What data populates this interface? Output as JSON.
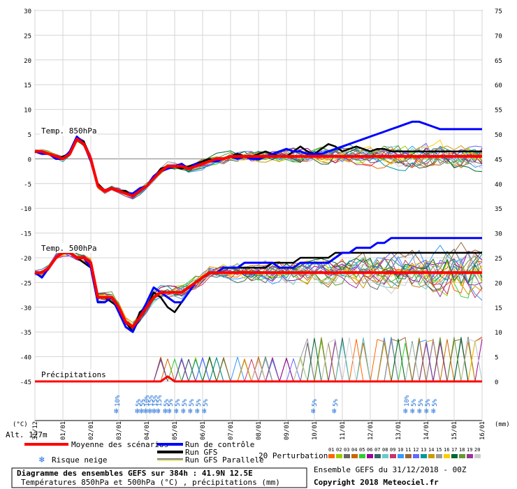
{
  "chart_data": {
    "type": "line",
    "title": "Diagramme des ensembles GEFS sur 384h : 41.9N 12.5E",
    "subtitle": "Températures 850hPa et 500hPa (°C) , précipitations (mm)",
    "run_info": "Ensemble GEFS du 31/12/2018 - 00Z",
    "copyright": "Copyright 2018 Meteociel.fr",
    "altitude": "Alt. 127m",
    "left_axis_unit": "(°C)",
    "right_axis_unit": "(mm)",
    "left_ticks": [
      "30",
      "25",
      "20",
      "15",
      "10",
      "5",
      "0",
      "-5",
      "-10",
      "-15",
      "-20",
      "-25",
      "-30",
      "-35",
      "-40",
      "-45"
    ],
    "right_ticks": [
      "75",
      "70",
      "65",
      "60",
      "55",
      "50",
      "45",
      "40",
      "35",
      "30",
      "25",
      "20",
      "15",
      "10",
      "5",
      "0"
    ],
    "ylim": [
      -45,
      30
    ],
    "x_dates": [
      "31/12",
      "01/01",
      "02/01",
      "03/01",
      "04/01",
      "05/01",
      "06/01",
      "07/01",
      "08/01",
      "09/01",
      "10/01",
      "11/01",
      "12/01",
      "13/01",
      "14/01",
      "15/01",
      "16/01"
    ],
    "x_tick_labels": [
      "31/12",
      "01/01",
      "02/01",
      "03/01",
      "04/01",
      "05/01",
      "06/01",
      "07/01",
      "08/01",
      "09/01",
      "10/01",
      "11/01",
      "12/01",
      "13/01",
      "14/01",
      "15/01",
      "16/01"
    ],
    "section_labels": {
      "t850": "Temp. 850hPa",
      "t500": "Temp. 500hPa",
      "precip": "Précipitations"
    },
    "t850_mean": [
      1.5,
      1.5,
      1.0,
      0.5,
      0.0,
      1.0,
      4.0,
      3.0,
      0.0,
      -5.5,
      -6.5,
      -6.0,
      -6.5,
      -7.0,
      -7.5,
      -6.5,
      -5.5,
      -4.0,
      -2.5,
      -1.5,
      -1.5,
      -1.5,
      -2.0,
      -1.5,
      -1.0,
      -0.5,
      0.0,
      0.0,
      0.5,
      0.5,
      0.5,
      0.5,
      0.5,
      0.5,
      0.5,
      0.5,
      0.5,
      0.5,
      0.5,
      0.5,
      0.5,
      0.5,
      0.5,
      0.5,
      0.5,
      0.5,
      0.5,
      0.5,
      0.5,
      0.5,
      0.5,
      0.5,
      0.5,
      0.5,
      0.5,
      0.5,
      0.5,
      0.5,
      0.5,
      0.5,
      0.5,
      0.5,
      0.5,
      0.5,
      0.5
    ],
    "t850_control": [
      1.5,
      1.0,
      1.0,
      0.0,
      0.0,
      1.5,
      4.5,
      3.0,
      -0.5,
      -5.5,
      -6.5,
      -6.0,
      -6.5,
      -7.0,
      -7.0,
      -6.0,
      -5.5,
      -3.5,
      -2.5,
      -2.0,
      -1.5,
      -1.0,
      -2.0,
      -1.0,
      -1.0,
      -0.5,
      -0.5,
      0.0,
      0.5,
      0.0,
      0.5,
      0.0,
      0.0,
      0.5,
      1.0,
      1.5,
      2.0,
      1.5,
      1.5,
      1.0,
      1.0,
      1.0,
      1.5,
      2.0,
      2.5,
      3.0,
      3.5,
      4.0,
      4.5,
      5.0,
      5.5,
      6.0,
      6.5,
      7.0,
      7.5,
      7.5,
      7.0,
      6.5,
      6.0,
      6.0,
      6.0,
      6.0,
      6.0,
      6.0,
      6.0
    ],
    "t850_gfs": [
      1.5,
      1.0,
      1.0,
      0.0,
      0.5,
      1.0,
      4.0,
      3.5,
      0.0,
      -5.0,
      -6.5,
      -6.0,
      -6.5,
      -6.5,
      -7.5,
      -6.0,
      -5.5,
      -4.0,
      -2.0,
      -1.5,
      -1.5,
      -2.0,
      -1.5,
      -1.0,
      -0.5,
      0.0,
      -0.5,
      0.0,
      0.5,
      1.0,
      0.5,
      0.5,
      1.0,
      1.5,
      1.0,
      0.5,
      0.5,
      1.5,
      2.5,
      1.5,
      1.0,
      2.0,
      3.0,
      2.5,
      1.5,
      2.0,
      2.5,
      2.0,
      1.5,
      2.0,
      2.0,
      1.5,
      1.5,
      1.5,
      1.5,
      1.5,
      1.5,
      1.5,
      1.5,
      1.5,
      1.5,
      1.5,
      1.5,
      1.5,
      1.5
    ],
    "t500_mean": [
      -23,
      -23,
      -22,
      -20,
      -19,
      -19,
      -20,
      -20,
      -21,
      -28,
      -28,
      -28,
      -30,
      -33,
      -34,
      -32,
      -30,
      -28,
      -27,
      -27,
      -27,
      -27,
      -26,
      -25,
      -24,
      -23,
      -23,
      -23,
      -23,
      -23,
      -23,
      -23,
      -23,
      -23,
      -23,
      -23,
      -23,
      -23,
      -23,
      -23,
      -23,
      -23,
      -23,
      -23,
      -23,
      -23,
      -23,
      -23,
      -23,
      -23,
      -23,
      -23,
      -23,
      -23,
      -23,
      -23,
      -23,
      -23,
      -23,
      -23,
      -23,
      -23,
      -23,
      -23,
      -23
    ],
    "t500_control": [
      -23,
      -24,
      -22,
      -20,
      -19,
      -19,
      -20,
      -20,
      -22,
      -29,
      -29,
      -28,
      -31,
      -34,
      -35,
      -32,
      -29,
      -26,
      -27,
      -28,
      -29,
      -29,
      -27,
      -25,
      -24,
      -23,
      -23,
      -22,
      -22,
      -22,
      -21,
      -21,
      -21,
      -21,
      -21,
      -22,
      -22,
      -22,
      -21,
      -21,
      -21,
      -21,
      -21,
      -20,
      -19,
      -19,
      -18,
      -18,
      -18,
      -17,
      -17,
      -16,
      -16,
      -16,
      -16,
      -16,
      -16,
      -16,
      -16,
      -16,
      -16,
      -16,
      -16,
      -16,
      -16
    ],
    "t500_gfs": [
      -23,
      -23,
      -22,
      -20,
      -19,
      -19,
      -20,
      -21,
      -22,
      -28,
      -28,
      -29,
      -30,
      -33,
      -35,
      -31,
      -30,
      -27,
      -28,
      -30,
      -31,
      -29,
      -27,
      -25,
      -24,
      -23,
      -23,
      -22,
      -22,
      -22,
      -22,
      -22,
      -22,
      -22,
      -21,
      -21,
      -21,
      -21,
      -20,
      -20,
      -20,
      -20,
      -20,
      -19,
      -19,
      -19,
      -19,
      -19,
      -19,
      -19,
      -19,
      -19,
      -19,
      -19,
      -19,
      -19,
      -19,
      -19,
      -19,
      -19,
      -19,
      -19,
      -19,
      -19,
      -19
    ],
    "precip_mean_mm": [
      0,
      0,
      0,
      0,
      0,
      0,
      0,
      0,
      0,
      0,
      0,
      0,
      0,
      0,
      0,
      0,
      0,
      0,
      0,
      1,
      0,
      0,
      0,
      0,
      0,
      0,
      0,
      0,
      0,
      0,
      0,
      0,
      0,
      0,
      0,
      0,
      0,
      0,
      0,
      0,
      0,
      0,
      0,
      0,
      0,
      0,
      0,
      0,
      0,
      0,
      0,
      0,
      0,
      0,
      0,
      0,
      0,
      0,
      0,
      0,
      0,
      0,
      0,
      0,
      0
    ],
    "snow_risk_labels": [
      {
        "date_index": 2.95,
        "pct": "10%"
      },
      {
        "date_index": 3.7,
        "pct": "5%"
      },
      {
        "date_index": 3.85,
        "pct": "5%"
      },
      {
        "date_index": 4.0,
        "pct": "10%"
      },
      {
        "date_index": 4.15,
        "pct": "15%"
      },
      {
        "date_index": 4.3,
        "pct": "15%"
      },
      {
        "date_index": 4.45,
        "pct": "15%"
      },
      {
        "date_index": 4.7,
        "pct": "5%"
      },
      {
        "date_index": 4.85,
        "pct": "5%"
      },
      {
        "date_index": 5.1,
        "pct": "5%"
      },
      {
        "date_index": 5.35,
        "pct": "5%"
      },
      {
        "date_index": 5.6,
        "pct": "5%"
      },
      {
        "date_index": 5.85,
        "pct": "5%"
      },
      {
        "date_index": 6.1,
        "pct": "5%"
      },
      {
        "date_index": 10.0,
        "pct": "5%"
      },
      {
        "date_index": 10.75,
        "pct": "5%"
      },
      {
        "date_index": 13.3,
        "pct": "10%"
      },
      {
        "date_index": 13.55,
        "pct": "5%"
      },
      {
        "date_index": 13.8,
        "pct": "5%"
      },
      {
        "date_index": 14.05,
        "pct": "5%"
      },
      {
        "date_index": 14.3,
        "pct": "5%"
      }
    ],
    "grid": true
  },
  "legend": {
    "mean": "Moyenne des scénarios",
    "control": "Run de contrôle",
    "gfs": "Run GFS",
    "gfs_parallel": "Run GFS Parallele",
    "snow": "Risque neige",
    "perturbations": "20 Perturbations",
    "perturbation_ids": [
      "01",
      "02",
      "03",
      "04",
      "05",
      "06",
      "07",
      "08",
      "09",
      "10",
      "11",
      "12",
      "13",
      "14",
      "15",
      "16",
      "17",
      "18",
      "19",
      "20"
    ]
  },
  "colors": {
    "mean": "#ff0000",
    "control": "#0000ff",
    "gfs": "#000000",
    "gfs_parallel": "#808000",
    "grid": "#d4d4d4",
    "snow": "#1e6fd9",
    "perturbations": [
      "#ff6600",
      "#99cc00",
      "#666666",
      "#cc6600",
      "#33cc33",
      "#990099",
      "#336666",
      "#66cccc",
      "#cc3366",
      "#3399ff",
      "#996633",
      "#6666ff",
      "#009999",
      "#cc9900",
      "#999999",
      "#ffcc00",
      "#006633",
      "#669933",
      "#993399",
      "#cccccc"
    ]
  }
}
